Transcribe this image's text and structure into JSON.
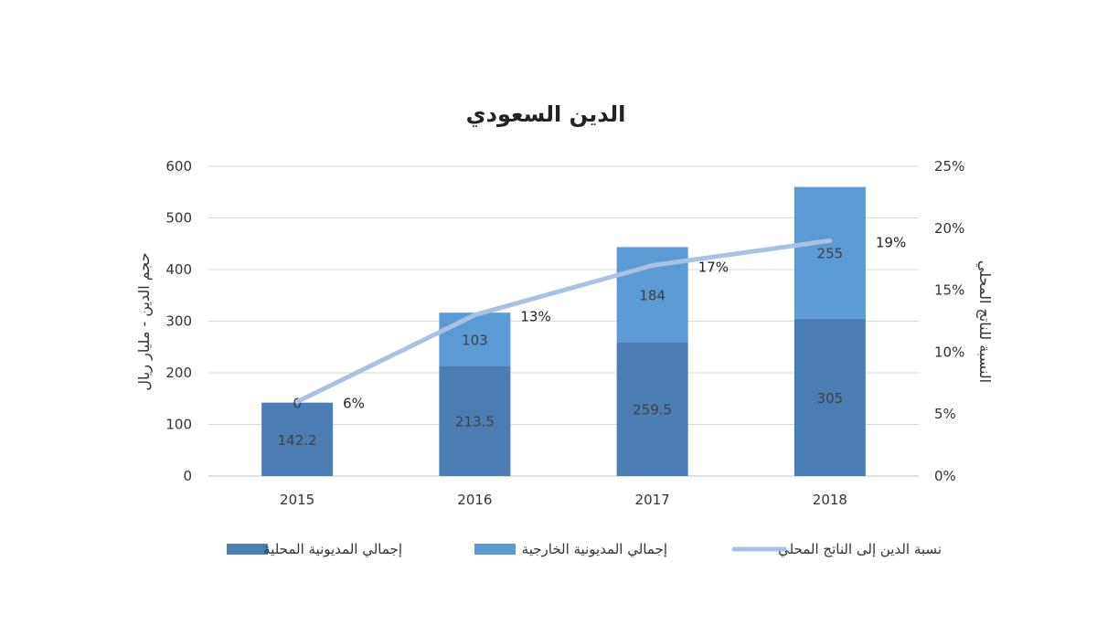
{
  "chart_data": {
    "type": "bar",
    "title": "الدين السعودي",
    "categories": [
      "2015",
      "2016",
      "2017",
      "2018"
    ],
    "ylabel": "حجم الدين - مليار ريال",
    "y2label": "النسبة للناتج المحلي",
    "ylim": [
      0,
      600
    ],
    "y2lim": [
      0,
      25
    ],
    "yticks": [
      "0",
      "100",
      "200",
      "300",
      "400",
      "500",
      "600"
    ],
    "y2ticks": [
      "0%",
      "5%",
      "10%",
      "15%",
      "20%",
      "25%"
    ],
    "series": [
      {
        "name": "إجمالي المديونية المحلية",
        "kind": "stacked-bar",
        "color": "#4a7eb5",
        "values": [
          142.2,
          213.5,
          259.5,
          305
        ],
        "labels": [
          "142.2",
          "213.5",
          "259.5",
          "305"
        ]
      },
      {
        "name": "إجمالي المديونية الخارجية",
        "kind": "stacked-bar",
        "color": "#5b9bd5",
        "values": [
          0,
          103,
          184,
          255
        ],
        "labels": [
          "0",
          "103",
          "184",
          "255"
        ]
      },
      {
        "name": "نسبة الدين إلى الناتج المحلي",
        "kind": "line",
        "axis": "secondary",
        "color": "#a9c1e3",
        "values": [
          6,
          13,
          17,
          19
        ],
        "labels": [
          "6%",
          "13%",
          "17%",
          "19%"
        ]
      }
    ],
    "grid": true,
    "legend": "bottom"
  }
}
